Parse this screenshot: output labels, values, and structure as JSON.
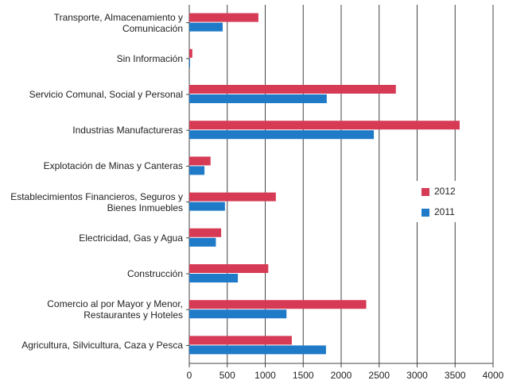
{
  "chart_data": {
    "type": "bar",
    "orientation": "horizontal",
    "categories": [
      "Transporte, Almacenamiento y\nComunicación",
      "Sin Información",
      "Servicio Comunal, Social y Personal",
      "Industrias Manufactureras",
      "Explotación de Minas y Canteras",
      "Establecimientos Financieros, Seguros y\nBienes Inmuebles",
      "Electricidad, Gas y Agua",
      "Construcción",
      "Comercio al por Mayor y Menor,\nRestaurantes y Hoteles",
      "Agricultura, Silvicultura, Caza y Pesca"
    ],
    "series": [
      {
        "name": "2012",
        "color": "#d63a55",
        "values": [
          910,
          40,
          2720,
          3560,
          280,
          1140,
          420,
          1040,
          2330,
          1350
        ]
      },
      {
        "name": "2011",
        "color": "#1f7ac8",
        "values": [
          440,
          10,
          1810,
          2430,
          200,
          470,
          350,
          640,
          1280,
          1800
        ]
      }
    ],
    "xlim": [
      0,
      4000
    ],
    "xticks": [
      0,
      500,
      1000,
      1500,
      2000,
      2500,
      3000,
      3500,
      4000
    ],
    "grid": true,
    "legend": "right"
  }
}
